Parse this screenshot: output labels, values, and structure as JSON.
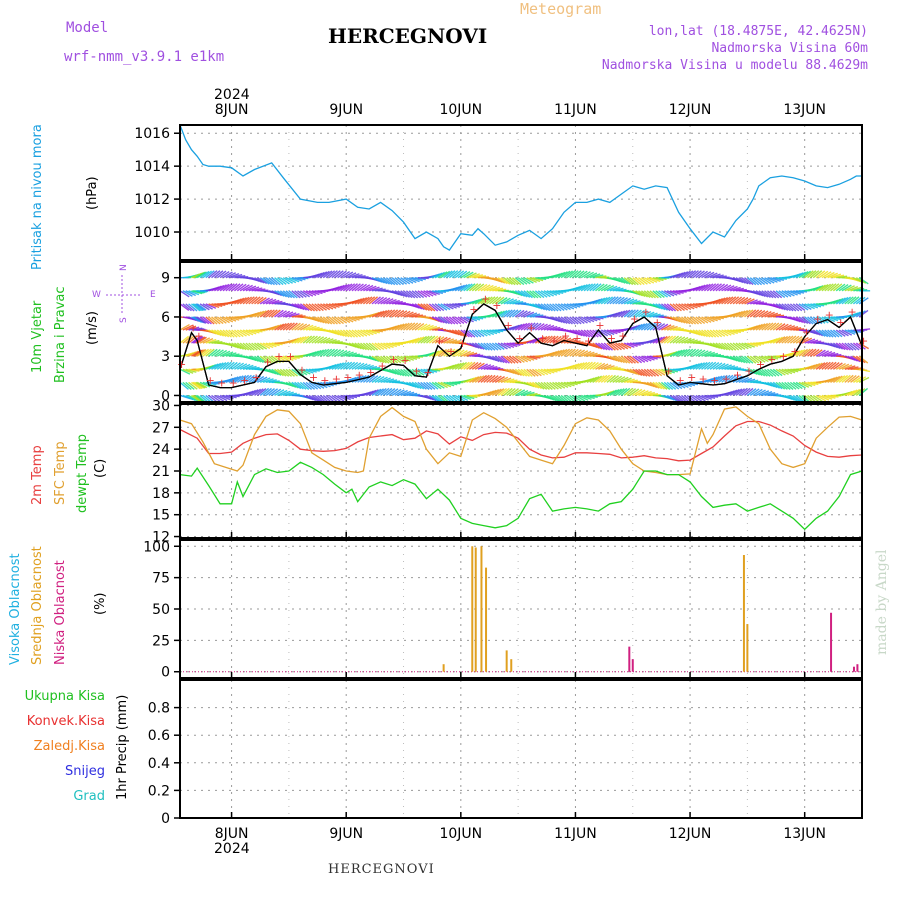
{
  "header": {
    "model_label": "Model",
    "model_name": "wrf-nmm_v3.9.1 e1km",
    "title": "HERCEGNOVI",
    "meteogram": "Meteogram",
    "lonlat": "lon,lat (18.4875E, 42.4625N)",
    "altitude": "Nadmorska Visina 60m",
    "model_altitude": "Nadmorska Visina u modelu 88.4629m"
  },
  "footer": {
    "title": "HERCEGNOVI",
    "watermark": "made by Angel"
  },
  "colors": {
    "pressure": "#1aa0e0",
    "t2m": "#e84040",
    "sfc": "#e0a030",
    "dewpt": "#20d020",
    "high_cloud": "#20b0e0",
    "mid_cloud": "#e0a020",
    "low_cloud": "#d02080",
    "precip_total": "#20c020",
    "precip_conv": "#e83030",
    "precip_frz": "#f08020",
    "snow": "#3030e0",
    "hail": "#20c0c0",
    "axis_label_purple": "#a050e0"
  },
  "x_axis": {
    "top_year": "2024",
    "bottom_year": "2024",
    "day_labels": [
      "8JUN",
      "9JUN",
      "10JUN",
      "11JUN",
      "12JUN",
      "13JUN"
    ]
  },
  "chart_data": [
    {
      "type": "line",
      "title": "Pritisak na nivou mora",
      "ylabel": "(hPa)",
      "x_unit": "days since 8JUN 00:00",
      "xlim": [
        -0.45,
        5.5
      ],
      "ylim": [
        1008.3,
        1016.5
      ],
      "yticks": [
        1010,
        1012,
        1014,
        1016
      ],
      "series": [
        {
          "name": "Pritisak na nivou mora",
          "x": [
            -0.45,
            -0.4,
            -0.35,
            -0.3,
            -0.25,
            -0.2,
            -0.1,
            0.0,
            0.1,
            0.2,
            0.35,
            0.45,
            0.6,
            0.75,
            0.85,
            1.0,
            1.1,
            1.2,
            1.3,
            1.4,
            1.5,
            1.6,
            1.7,
            1.8,
            1.85,
            1.9,
            2.0,
            2.1,
            2.15,
            2.2,
            2.3,
            2.4,
            2.5,
            2.6,
            2.7,
            2.8,
            2.9,
            3.0,
            3.1,
            3.2,
            3.3,
            3.4,
            3.5,
            3.6,
            3.7,
            3.8,
            3.9,
            4.0,
            4.1,
            4.2,
            4.3,
            4.4,
            4.5,
            4.55,
            4.6,
            4.7,
            4.8,
            4.9,
            5.0,
            5.1,
            5.2,
            5.3,
            5.4,
            5.45,
            5.5
          ],
          "values": [
            1016.5,
            1015.6,
            1015.0,
            1014.6,
            1014.1,
            1014.0,
            1014.0,
            1013.9,
            1013.4,
            1013.8,
            1014.2,
            1013.3,
            1012.0,
            1011.8,
            1011.8,
            1012.0,
            1011.5,
            1011.4,
            1011.8,
            1011.3,
            1010.6,
            1009.6,
            1010.0,
            1009.6,
            1009.1,
            1008.9,
            1009.9,
            1009.8,
            1010.2,
            1009.9,
            1009.2,
            1009.4,
            1009.8,
            1010.1,
            1009.6,
            1010.2,
            1011.2,
            1011.8,
            1011.8,
            1012.0,
            1011.8,
            1012.3,
            1012.8,
            1012.6,
            1012.8,
            1012.7,
            1011.2,
            1010.2,
            1009.3,
            1010.0,
            1009.7,
            1010.7,
            1011.4,
            1012.0,
            1012.8,
            1013.3,
            1013.4,
            1013.3,
            1013.1,
            1012.8,
            1012.7,
            1012.9,
            1013.2,
            1013.4,
            1013.4
          ]
        }
      ]
    },
    {
      "type": "line",
      "title": "10m Vjetar Brzina i Pravac",
      "ylabel": "(m/s)",
      "compass": {
        "n": "N",
        "w": "W",
        "e": "E",
        "s": "S"
      },
      "xlim": [
        -0.45,
        5.5
      ],
      "ylim": [
        -0.5,
        10.2
      ],
      "yticks": [
        0,
        3,
        6,
        9
      ],
      "series": [
        {
          "name": "wind speed",
          "x": [
            -0.45,
            -0.35,
            -0.3,
            -0.2,
            -0.1,
            0.0,
            0.1,
            0.2,
            0.3,
            0.4,
            0.5,
            0.6,
            0.7,
            0.8,
            0.9,
            1.0,
            1.1,
            1.2,
            1.3,
            1.4,
            1.5,
            1.6,
            1.7,
            1.8,
            1.9,
            2.0,
            2.1,
            2.2,
            2.3,
            2.4,
            2.5,
            2.6,
            2.7,
            2.8,
            2.9,
            3.0,
            3.1,
            3.2,
            3.3,
            3.4,
            3.5,
            3.6,
            3.7,
            3.8,
            3.9,
            4.0,
            4.1,
            4.2,
            4.3,
            4.4,
            4.5,
            4.6,
            4.7,
            4.8,
            4.9,
            5.0,
            5.1,
            5.2,
            5.3,
            5.4,
            5.5
          ],
          "values": [
            2.0,
            4.8,
            4.2,
            0.8,
            0.6,
            0.6,
            0.8,
            1.0,
            2.2,
            2.6,
            2.6,
            1.6,
            1.0,
            0.8,
            0.9,
            1.0,
            1.2,
            1.4,
            1.9,
            2.4,
            2.3,
            1.5,
            1.4,
            3.8,
            3.0,
            3.6,
            6.2,
            7.0,
            6.5,
            5.0,
            4.0,
            4.8,
            4.0,
            3.8,
            4.2,
            4.0,
            3.8,
            5.0,
            4.0,
            4.2,
            5.5,
            6.0,
            5.2,
            1.5,
            0.8,
            1.0,
            0.9,
            0.8,
            0.9,
            1.2,
            1.5,
            2.0,
            2.4,
            2.6,
            3.0,
            4.5,
            5.5,
            5.8,
            5.2,
            6.0,
            3.8
          ]
        }
      ]
    },
    {
      "type": "line",
      "title": "2m Temp / SFC Temp / dewpt Temp",
      "ylabel": "(C)",
      "xlim": [
        -0.45,
        5.5
      ],
      "ylim": [
        11.8,
        30.2
      ],
      "yticks": [
        12,
        15,
        18,
        21,
        24,
        27,
        30
      ],
      "series": [
        {
          "name": "2m Temp",
          "x": [
            -0.45,
            -0.3,
            -0.2,
            -0.1,
            0.0,
            0.1,
            0.2,
            0.3,
            0.4,
            0.5,
            0.6,
            0.7,
            0.8,
            0.9,
            1.0,
            1.1,
            1.2,
            1.3,
            1.4,
            1.5,
            1.6,
            1.7,
            1.8,
            1.9,
            2.0,
            2.1,
            2.2,
            2.3,
            2.4,
            2.5,
            2.6,
            2.7,
            2.8,
            2.9,
            3.0,
            3.1,
            3.2,
            3.3,
            3.4,
            3.5,
            3.6,
            3.7,
            3.8,
            3.9,
            4.0,
            4.1,
            4.2,
            4.3,
            4.4,
            4.5,
            4.6,
            4.7,
            4.8,
            4.9,
            5.0,
            5.1,
            5.2,
            5.3,
            5.4,
            5.5
          ],
          "values": [
            26.7,
            25.5,
            23.4,
            23.4,
            23.6,
            24.8,
            25.5,
            26.0,
            26.1,
            25.2,
            24.0,
            23.8,
            23.7,
            23.8,
            24.1,
            25.0,
            25.6,
            25.8,
            26.0,
            25.3,
            25.5,
            26.5,
            26.1,
            24.7,
            25.7,
            25.2,
            26.0,
            26.3,
            26.2,
            25.5,
            24.0,
            23.2,
            22.8,
            22.9,
            23.5,
            23.5,
            23.4,
            23.3,
            22.8,
            22.9,
            23.1,
            22.8,
            22.7,
            22.4,
            22.5,
            23.4,
            24.3,
            25.8,
            27.2,
            27.8,
            27.8,
            27.3,
            26.5,
            25.8,
            24.5,
            23.6,
            23.0,
            22.9,
            23.1,
            23.2
          ]
        },
        {
          "name": "SFC Temp",
          "x": [
            -0.45,
            -0.35,
            -0.25,
            -0.15,
            -0.05,
            0.05,
            0.1,
            0.2,
            0.3,
            0.4,
            0.5,
            0.6,
            0.7,
            0.8,
            0.9,
            1.0,
            1.1,
            1.15,
            1.2,
            1.3,
            1.4,
            1.5,
            1.6,
            1.7,
            1.8,
            1.9,
            2.0,
            2.1,
            2.2,
            2.3,
            2.4,
            2.5,
            2.6,
            2.7,
            2.8,
            2.9,
            3.0,
            3.1,
            3.2,
            3.3,
            3.4,
            3.5,
            3.6,
            3.7,
            3.8,
            3.9,
            4.0,
            4.1,
            4.15,
            4.2,
            4.3,
            4.4,
            4.5,
            4.6,
            4.7,
            4.8,
            4.9,
            5.0,
            5.1,
            5.2,
            5.3,
            5.4,
            5.5
          ],
          "values": [
            28.0,
            27.5,
            25.0,
            22.0,
            21.5,
            21.0,
            21.8,
            26.0,
            28.5,
            29.4,
            29.2,
            27.5,
            23.5,
            22.5,
            21.5,
            21.0,
            20.8,
            21.0,
            25.5,
            28.5,
            29.7,
            28.5,
            27.8,
            24.0,
            22.0,
            23.5,
            23.0,
            28.0,
            29.0,
            28.2,
            27.0,
            25.0,
            23.0,
            22.5,
            22.0,
            24.5,
            27.5,
            28.3,
            28.0,
            26.5,
            24.0,
            22.0,
            21.0,
            20.8,
            20.5,
            20.5,
            20.6,
            26.8,
            24.8,
            26.0,
            29.5,
            29.8,
            28.5,
            27.5,
            24.0,
            22.0,
            21.5,
            22.0,
            25.5,
            27.0,
            28.4,
            28.5,
            28.0
          ]
        },
        {
          "name": "dewpt Temp",
          "x": [
            -0.45,
            -0.35,
            -0.3,
            -0.2,
            -0.1,
            0.0,
            0.05,
            0.1,
            0.2,
            0.3,
            0.4,
            0.5,
            0.6,
            0.7,
            0.8,
            0.9,
            1.0,
            1.05,
            1.1,
            1.2,
            1.3,
            1.4,
            1.5,
            1.6,
            1.7,
            1.8,
            1.9,
            2.0,
            2.1,
            2.2,
            2.3,
            2.4,
            2.5,
            2.6,
            2.7,
            2.8,
            2.9,
            3.0,
            3.1,
            3.2,
            3.3,
            3.4,
            3.5,
            3.6,
            3.7,
            3.8,
            3.9,
            4.0,
            4.1,
            4.2,
            4.3,
            4.4,
            4.5,
            4.6,
            4.7,
            4.8,
            4.9,
            5.0,
            5.1,
            5.2,
            5.3,
            5.4,
            5.5
          ],
          "values": [
            20.5,
            20.3,
            21.4,
            19.0,
            16.5,
            16.5,
            19.5,
            17.5,
            20.5,
            21.3,
            20.8,
            21.0,
            22.2,
            21.5,
            20.5,
            19.2,
            18.0,
            18.5,
            16.8,
            18.8,
            19.5,
            19.0,
            19.8,
            19.2,
            17.2,
            18.5,
            17.0,
            14.5,
            13.8,
            13.5,
            13.2,
            13.5,
            14.5,
            17.2,
            17.8,
            15.5,
            15.8,
            16.0,
            15.8,
            15.5,
            16.5,
            16.8,
            18.5,
            21.0,
            21.0,
            20.5,
            20.5,
            19.5,
            17.5,
            16.0,
            16.3,
            16.5,
            15.5,
            16.0,
            16.5,
            15.5,
            14.5,
            13.0,
            14.5,
            15.5,
            17.5,
            20.5,
            21.0
          ]
        }
      ]
    },
    {
      "type": "bar",
      "title": "Visoka Oblacnost / Srednja Oblacnost / Niska Oblacnost",
      "ylabel": "(%)",
      "xlim": [
        -0.45,
        5.5
      ],
      "ylim": [
        -5,
        105
      ],
      "yticks": [
        0,
        25,
        50,
        75,
        100
      ],
      "series": [
        {
          "name": "Visoka Oblacnost",
          "x": [],
          "values": []
        },
        {
          "name": "Srednja Oblacnost",
          "x": [
            1.85,
            2.1,
            2.13,
            2.18,
            2.22,
            2.4,
            2.44,
            4.47,
            4.5
          ],
          "values": [
            6,
            100,
            99,
            100,
            83,
            17,
            10,
            93,
            38
          ]
        },
        {
          "name": "Niska Oblacnost",
          "x": [
            3.47,
            3.5,
            5.23,
            5.43,
            5.46
          ],
          "values": [
            20,
            10,
            47,
            4,
            6
          ]
        }
      ]
    },
    {
      "type": "bar",
      "title": "Ukupna Kisa / Konvek.Kisa / Zaledj.Kisa / Snijeg / Grad",
      "ylabel": "1hr Precip (mm)",
      "xlim": [
        -0.45,
        5.5
      ],
      "ylim": [
        0,
        1.0
      ],
      "yticks": [
        0,
        0.2,
        0.4,
        0.6,
        0.8
      ],
      "ytick_labels": [
        "0",
        "0.2",
        "0.4",
        "0.6",
        "0.8"
      ],
      "series": [
        {
          "name": "Ukupna Kisa",
          "x": [],
          "values": []
        },
        {
          "name": "Konvek.Kisa",
          "x": [],
          "values": []
        },
        {
          "name": "Zaledj.Kisa",
          "x": [],
          "values": []
        },
        {
          "name": "Snijeg",
          "x": [],
          "values": []
        },
        {
          "name": "Grad",
          "x": [],
          "values": []
        }
      ]
    }
  ],
  "panel_labels": {
    "pressure": [
      "Pritisak na nivou mora",
      "(hPa)"
    ],
    "wind": [
      "10m Vjetar",
      "Brzina i Pravac",
      "(m/s)"
    ],
    "temp": [
      "2m Temp",
      "SFC Temp",
      "dewpt Temp",
      "(C)"
    ],
    "cloud": [
      "Visoka Oblacnost",
      "Srednja Oblacnost",
      "Niska Oblacnost",
      "(%)"
    ],
    "precip_legend": [
      "Ukupna Kisa",
      "Konvek.Kisa",
      "Zaledj.Kisa",
      "Snijeg",
      "Grad"
    ],
    "precip_axis": "1hr Precip (mm)"
  }
}
